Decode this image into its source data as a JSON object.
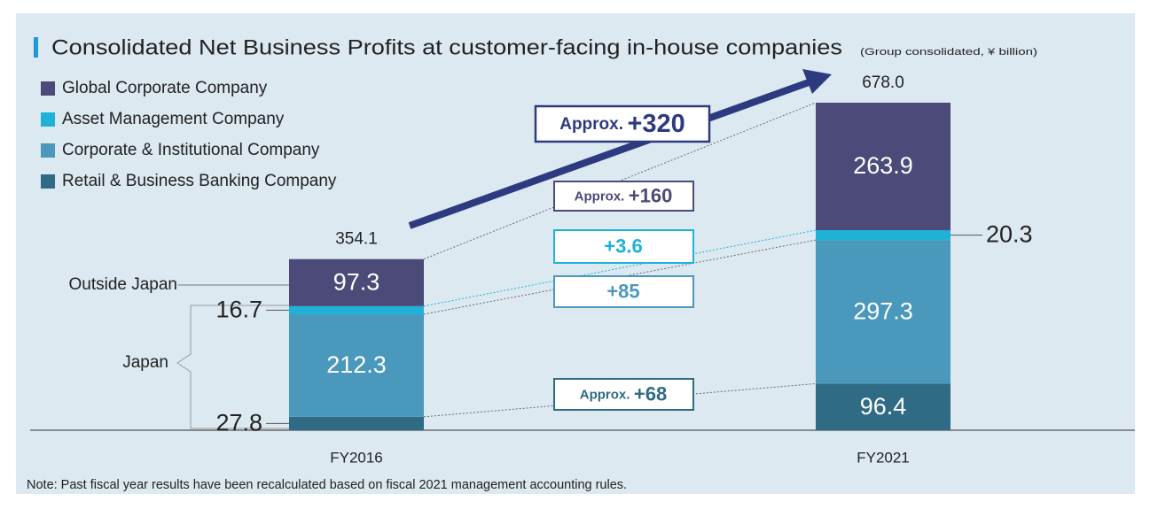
{
  "chart_data": {
    "type": "stacked_bar",
    "title": "Consolidated Net Business Profits at customer-facing in-house companies",
    "subtitle": "(Group consolidated, ¥ billion)",
    "categories": [
      "FY2016",
      "FY2021"
    ],
    "series": [
      {
        "name": "Global Corporate Company",
        "color": "#4b4a78",
        "values": [
          97.3,
          263.9
        ]
      },
      {
        "name": "Asset Management Company",
        "color": "#1fb2d8",
        "values": [
          16.7,
          20.3
        ]
      },
      {
        "name": "Corporate & Institutional Company",
        "color": "#4a98bb",
        "values": [
          212.3,
          297.3
        ]
      },
      {
        "name": "Retail & Business Banking Company",
        "color": "#2f6b85",
        "values": [
          27.8,
          96.4
        ]
      }
    ],
    "totals": {
      "values": [
        354.1,
        678.0
      ],
      "value_labels": [
        "354.1",
        "678.0"
      ]
    },
    "total_change": {
      "prefix": "Approx.",
      "text": "+320",
      "color": "#2d3a80"
    },
    "changes": [
      {
        "prefix": "Approx.",
        "text": "+160"
      },
      {
        "prefix": "",
        "text": "+3.6"
      },
      {
        "prefix": "",
        "text": "+85"
      },
      {
        "prefix": "Approx.",
        "text": "+68"
      }
    ],
    "region_labels": {
      "outside": "Outside Japan",
      "japan": "Japan"
    },
    "note": "Note: Past fiscal year results have been recalculated based on fiscal 2021 management accounting rules."
  }
}
